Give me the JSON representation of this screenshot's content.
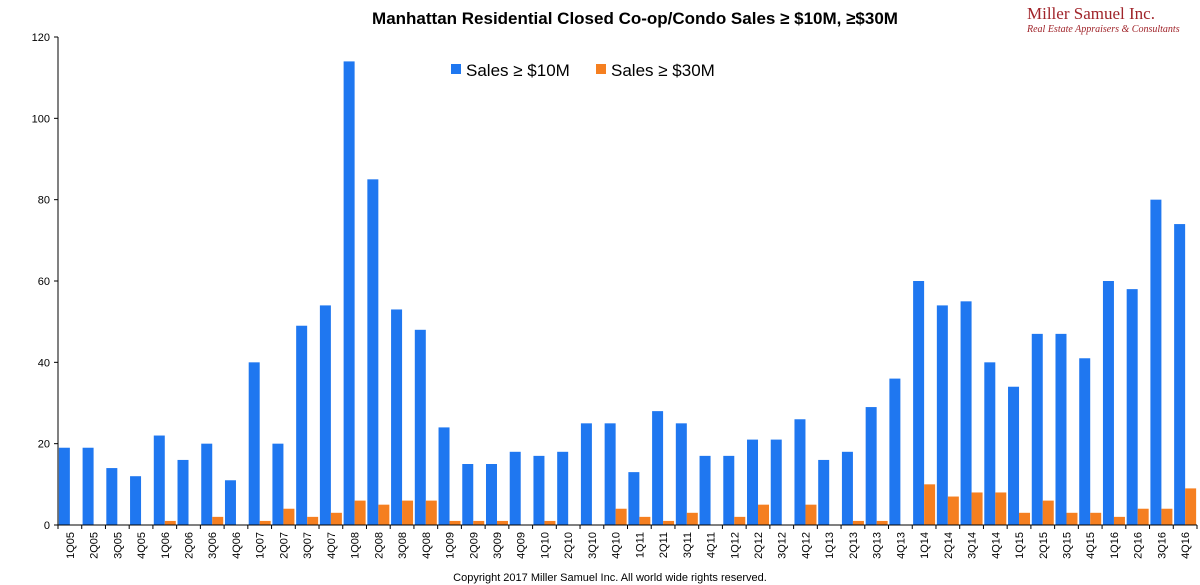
{
  "chart_data": {
    "type": "bar",
    "title": "Manhattan Residential Closed Co-op/Condo Sales ≥ $10M, ≥$30M",
    "ylim": [
      0,
      120
    ],
    "yticks": [
      0,
      20,
      40,
      60,
      80,
      100,
      120
    ],
    "grid": false,
    "legend_position": "top-center",
    "categories": [
      "1Q05",
      "2Q05",
      "3Q05",
      "4Q05",
      "1Q06",
      "2Q06",
      "3Q06",
      "4Q06",
      "1Q07",
      "2Q07",
      "3Q07",
      "4Q07",
      "1Q08",
      "2Q08",
      "3Q08",
      "4Q08",
      "1Q09",
      "2Q09",
      "3Q09",
      "4Q09",
      "1Q10",
      "2Q10",
      "3Q10",
      "4Q10",
      "1Q11",
      "2Q11",
      "3Q11",
      "4Q11",
      "1Q12",
      "2Q12",
      "3Q12",
      "4Q12",
      "1Q13",
      "2Q13",
      "3Q13",
      "4Q13",
      "1Q14",
      "2Q14",
      "3Q14",
      "4Q14",
      "1Q15",
      "2Q15",
      "3Q15",
      "4Q15",
      "1Q16",
      "2Q16",
      "3Q16",
      "4Q16"
    ],
    "series": [
      {
        "name": "Sales ≥ $10M",
        "color": "#1f77f0",
        "values": [
          19,
          19,
          14,
          12,
          22,
          16,
          20,
          11,
          40,
          20,
          49,
          54,
          114,
          85,
          53,
          48,
          24,
          15,
          15,
          18,
          17,
          18,
          25,
          25,
          13,
          28,
          25,
          17,
          17,
          21,
          21,
          26,
          16,
          18,
          29,
          36,
          60,
          54,
          55,
          40,
          34,
          47,
          47,
          41,
          60,
          58,
          80,
          74
        ]
      },
      {
        "name": "Sales ≥ $30M",
        "color": "#f57f20",
        "values": [
          0,
          0,
          0,
          0,
          1,
          0,
          2,
          0,
          1,
          4,
          2,
          3,
          6,
          5,
          6,
          6,
          1,
          1,
          1,
          0,
          1,
          0,
          0,
          4,
          2,
          1,
          3,
          0,
          2,
          5,
          0,
          5,
          0,
          1,
          1,
          0,
          10,
          7,
          8,
          8,
          3,
          6,
          3,
          3,
          2,
          4,
          4,
          9
        ]
      }
    ]
  },
  "logo": {
    "name": "Miller Samuel Inc.",
    "tagline": "Real Estate Appraisers & Consultants"
  },
  "footer": {
    "copyright": "Copyright 2017 Miller Samuel Inc.  All world wide rights reserved."
  }
}
